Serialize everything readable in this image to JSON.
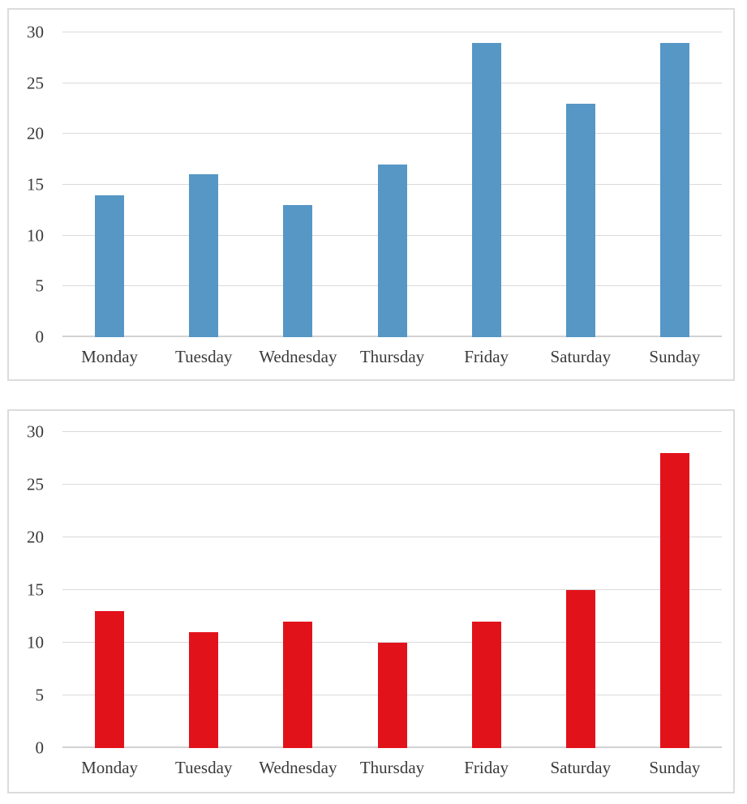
{
  "chart_data": [
    {
      "name": "weekday-values-blue",
      "type": "bar",
      "title": "",
      "xlabel": "",
      "ylabel": "",
      "categories": [
        "Monday",
        "Tuesday",
        "Wednesday",
        "Thursday",
        "Friday",
        "Saturday",
        "Sunday"
      ],
      "values": [
        14,
        16,
        13,
        17,
        29,
        23,
        29
      ],
      "y_ticks": [
        0,
        5,
        10,
        15,
        20,
        25,
        30
      ],
      "ylim": [
        0,
        30
      ],
      "bar_color": "#5697c6",
      "grid": true,
      "legend": false
    },
    {
      "name": "weekday-values-red",
      "type": "bar",
      "title": "",
      "xlabel": "",
      "ylabel": "",
      "categories": [
        "Monday",
        "Tuesday",
        "Wednesday",
        "Thursday",
        "Friday",
        "Saturday",
        "Sunday"
      ],
      "values": [
        13,
        11,
        12,
        10,
        12,
        15,
        28
      ],
      "y_ticks": [
        0,
        5,
        10,
        15,
        20,
        25,
        30
      ],
      "ylim": [
        0,
        30
      ],
      "bar_color": "#e2121b",
      "grid": true,
      "legend": false
    }
  ],
  "colors": {
    "gridline": "#dadada",
    "axis_line": "#d2d2d2",
    "panel_border": "#dcdcdc",
    "tick_text": "#3a3a3a"
  }
}
